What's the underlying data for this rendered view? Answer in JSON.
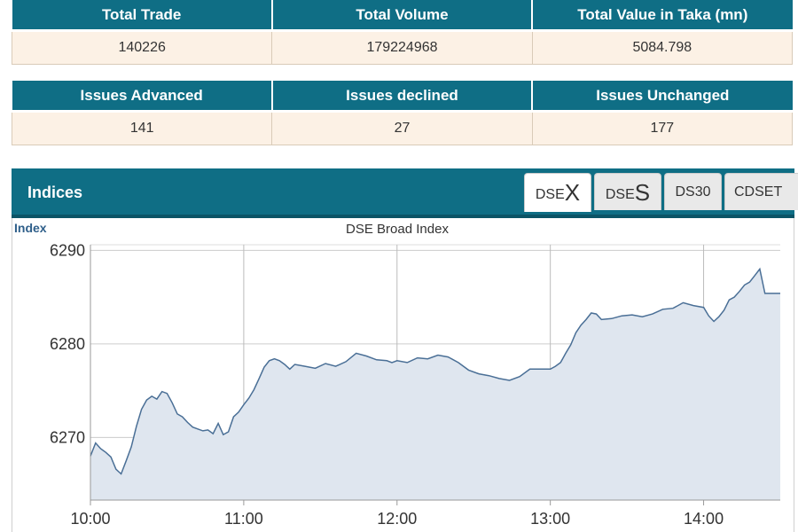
{
  "stats_top": {
    "headers": [
      "Total Trade",
      "Total Volume",
      "Total Value in Taka (mn)"
    ],
    "values": [
      "140226",
      "179224968",
      "5084.798"
    ]
  },
  "stats_issues": {
    "headers": [
      "Issues Advanced",
      "Issues declined",
      "Issues Unchanged"
    ],
    "values": [
      "141",
      "27",
      "177"
    ]
  },
  "indices": {
    "title": "Indices",
    "tabs": [
      {
        "prefix": "DSE",
        "big": "X",
        "active": true
      },
      {
        "prefix": "DSE",
        "big": "S",
        "active": false
      },
      {
        "prefix": "DS30",
        "big": "",
        "active": false
      },
      {
        "prefix": "CDSET",
        "big": "",
        "active": false
      }
    ]
  },
  "colors": {
    "header_bg": "#0f6e85",
    "cell_bg": "#fcf1e5",
    "line": "#4a6f96",
    "area": "#dfe6ef"
  },
  "chart_data": {
    "type": "area",
    "title": "DSE Broad Index",
    "ylabel": "Index",
    "xlabel": "",
    "x_ticks": [
      "10:00",
      "11:00",
      "12:00",
      "13:00",
      "14:00"
    ],
    "y_ticks": [
      6270,
      6280,
      6290
    ],
    "ylim": [
      6263.3,
      6290.6
    ],
    "xlim": [
      "10:00",
      "14:30"
    ],
    "grid": true,
    "series": [
      {
        "name": "",
        "x": [
          "10:00",
          "10:02",
          "10:04",
          "10:06",
          "10:08",
          "10:10",
          "10:12",
          "10:14",
          "10:16",
          "10:18",
          "10:20",
          "10:22",
          "10:24",
          "10:26",
          "10:28",
          "10:30",
          "10:32",
          "10:34",
          "10:36",
          "10:38",
          "10:40",
          "10:42",
          "10:44",
          "10:46",
          "10:48",
          "10:50",
          "10:52",
          "10:54",
          "10:56",
          "10:58",
          "11:00",
          "11:02",
          "11:04",
          "11:06",
          "11:08",
          "11:10",
          "11:12",
          "11:14",
          "11:16",
          "11:18",
          "11:20",
          "11:24",
          "11:28",
          "11:32",
          "11:36",
          "11:40",
          "11:44",
          "11:48",
          "11:52",
          "11:56",
          "11:58",
          "12:00",
          "12:04",
          "12:08",
          "12:12",
          "12:16",
          "12:20",
          "12:24",
          "12:28",
          "12:32",
          "12:36",
          "12:40",
          "12:44",
          "12:48",
          "12:52",
          "12:56",
          "13:00",
          "13:02",
          "13:04",
          "13:06",
          "13:08",
          "13:10",
          "13:12",
          "13:14",
          "13:16",
          "13:18",
          "13:20",
          "13:24",
          "13:28",
          "13:32",
          "13:36",
          "13:40",
          "13:44",
          "13:48",
          "13:52",
          "13:56",
          "14:00",
          "14:02",
          "14:04",
          "14:06",
          "14:08",
          "14:10",
          "14:12",
          "14:14",
          "14:16",
          "14:18",
          "14:20",
          "14:22",
          "14:24",
          "14:26",
          "14:28",
          "14:30"
        ],
        "values": [
          6268.0,
          6269.4,
          6268.8,
          6268.4,
          6267.9,
          6266.6,
          6266.1,
          6267.5,
          6269.0,
          6271.2,
          6273.0,
          6274.0,
          6274.4,
          6274.1,
          6274.9,
          6274.7,
          6273.7,
          6272.5,
          6272.2,
          6271.6,
          6271.1,
          6270.9,
          6270.7,
          6270.8,
          6270.4,
          6271.5,
          6270.3,
          6270.6,
          6272.2,
          6272.7,
          6273.5,
          6274.2,
          6275.1,
          6276.3,
          6277.5,
          6278.2,
          6278.4,
          6278.2,
          6277.8,
          6277.3,
          6277.8,
          6277.6,
          6277.4,
          6277.9,
          6277.6,
          6278.1,
          6279.0,
          6278.7,
          6278.3,
          6278.2,
          6278.0,
          6278.2,
          6278.0,
          6278.5,
          6278.4,
          6278.8,
          6278.6,
          6278.0,
          6277.2,
          6276.8,
          6276.6,
          6276.3,
          6276.1,
          6276.5,
          6277.3,
          6277.3,
          6277.3,
          6277.6,
          6278.0,
          6279.0,
          6279.9,
          6281.2,
          6282.0,
          6282.6,
          6283.3,
          6283.2,
          6282.6,
          6282.7,
          6283.0,
          6283.1,
          6282.9,
          6283.2,
          6283.7,
          6283.8,
          6284.4,
          6284.1,
          6283.9,
          6283.0,
          6282.4,
          6282.9,
          6283.6,
          6284.7,
          6285.0,
          6285.6,
          6286.3,
          6286.6,
          6287.3,
          6288.0,
          6285.4,
          6285.4,
          6285.4,
          6285.4
        ]
      }
    ]
  }
}
